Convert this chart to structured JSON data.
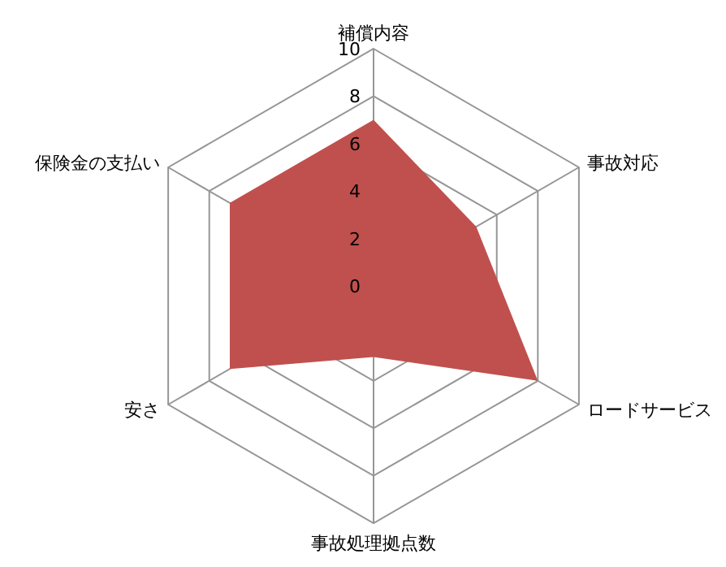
{
  "chart_data": {
    "type": "radar",
    "categories": [
      "補償内容",
      "事故対応",
      "ロードサービス",
      "事故処理拠点数",
      "安さ",
      "保険金の支払い"
    ],
    "series": [
      {
        "color": "#c0504d",
        "values": [
          7,
          5,
          8,
          3,
          7,
          7
        ]
      }
    ],
    "ylim": [
      0,
      10
    ],
    "yticks": [
      0,
      2,
      4,
      6,
      8,
      10
    ],
    "grid": true
  }
}
